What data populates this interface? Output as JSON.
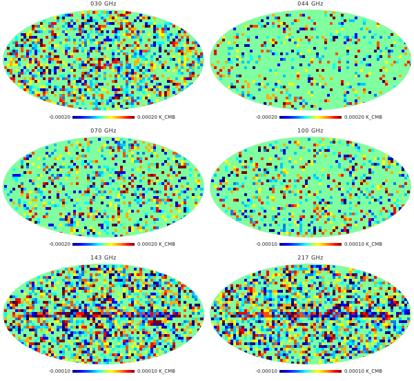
{
  "panels": [
    {
      "title": "030 GHz",
      "min_label": "-0.00020",
      "max_label": "0.00020 K_CMB",
      "noise_level": 0.9,
      "galactic_band": false
    },
    {
      "title": "044 GHz",
      "min_label": "-0.00020",
      "max_label": "0.00020 K_CMB",
      "noise_level": 0.35,
      "galactic_band": false
    },
    {
      "title": "070 GHz",
      "min_label": "-0.00020",
      "max_label": "0.00020 K_CMB",
      "noise_level": 0.55,
      "galactic_band": false
    },
    {
      "title": "100 GHz",
      "min_label": "-0.00010",
      "max_label": "0.00010 K_CMB",
      "noise_level": 0.45,
      "galactic_band": false
    },
    {
      "title": "143 GHz",
      "min_label": "-0.00010",
      "max_label": "0.00010 K_CMB",
      "noise_level": 1.0,
      "galactic_band": true
    },
    {
      "title": "217 GHz",
      "min_label": "-0.00010",
      "max_label": "0.00010 K_CMB",
      "noise_level": 1.0,
      "galactic_band": true
    }
  ],
  "colormap": {
    "low": "#00007f",
    "mid": "#80ff80",
    "high": "#7f0000",
    "background": "#7fffa0"
  }
}
